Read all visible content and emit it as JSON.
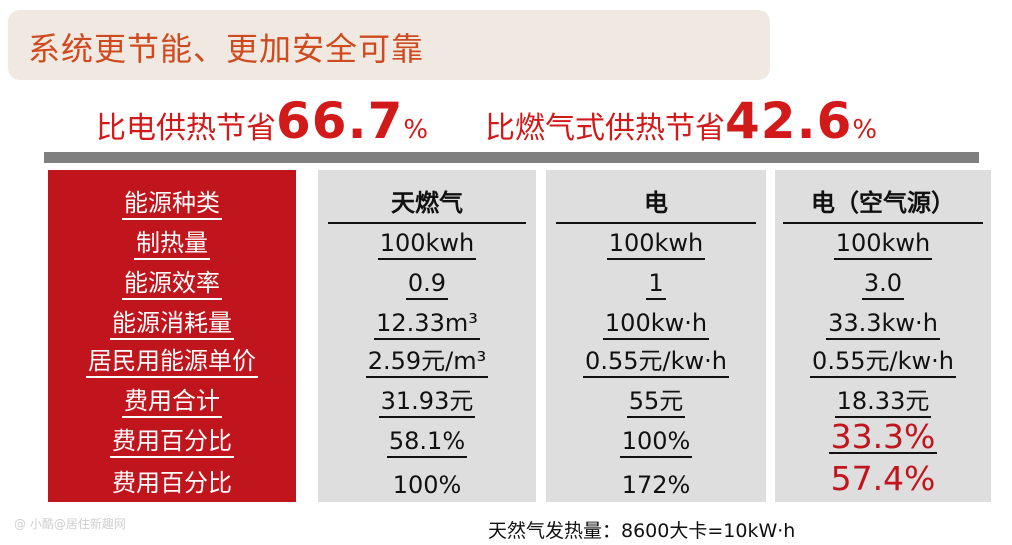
{
  "title": "系统更节能、更加安全可靠",
  "savings": {
    "electric": {
      "label": "比电供热节省",
      "value": "66.7",
      "unit": "%"
    },
    "gas": {
      "label": "比燃气式供热节省",
      "value": "42.6",
      "unit": "%"
    }
  },
  "table": {
    "row_labels": [
      "能源种类",
      "制热量",
      "能源效率",
      "能源消耗量",
      "居民用能源单价",
      "费用合计",
      "费用百分比",
      "费用百分比"
    ],
    "columns": [
      {
        "cells": [
          "天燃气",
          "100kwh",
          "0.9",
          "12.33m³",
          "2.59元/m³",
          "31.93元",
          "58.1%",
          "100%"
        ]
      },
      {
        "cells": [
          "电",
          "100kwh",
          "1",
          "100kw·h",
          "0.55元/kw·h",
          "55元",
          "100%",
          "172%"
        ]
      },
      {
        "cells": [
          "电（空气源）",
          "100kwh",
          "3.0",
          "33.3kw·h",
          "0.55元/kw·h",
          "18.33元",
          "33.3%",
          "57.4%"
        ]
      }
    ]
  },
  "footnote": "天然气发热量：8600大卡=10kW·h",
  "watermark": "@ 小酷@居住新趣网",
  "colors": {
    "accent_red": "#c0151c",
    "title_orange": "#d04a1f",
    "column_gray": "#dedede"
  }
}
